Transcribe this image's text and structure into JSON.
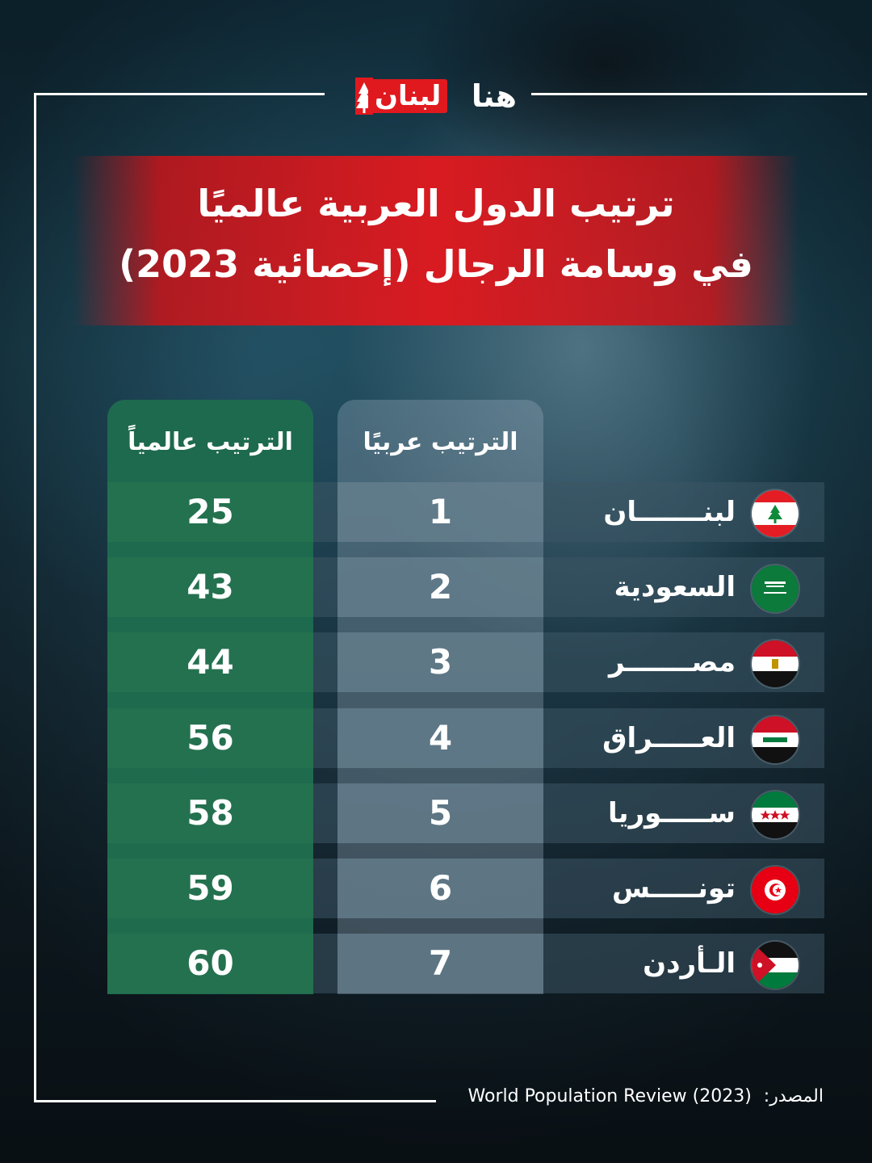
{
  "brand": {
    "logo_word_red": "لبنان",
    "logo_word_white": "هنا"
  },
  "title": {
    "line1": "ترتيب الدول العربية عالميًا",
    "line2": "في وسامة الرجال (إحصائية 2023)"
  },
  "table": {
    "header_arab": "الترتيب عربيًا",
    "header_world": "الترتيب عالمياً",
    "rows": [
      {
        "country": "لبنـــــــان",
        "flag": "lebanon-flag",
        "arab_rank": "1",
        "world_rank": "25"
      },
      {
        "country": "السعودية",
        "flag": "saudi-flag",
        "arab_rank": "2",
        "world_rank": "43"
      },
      {
        "country": "مصـــــــر",
        "flag": "egypt-flag",
        "arab_rank": "3",
        "world_rank": "44"
      },
      {
        "country": "العـــــراق",
        "flag": "iraq-flag",
        "arab_rank": "4",
        "world_rank": "56"
      },
      {
        "country": "ســـــوريا",
        "flag": "syria-flag",
        "arab_rank": "5",
        "world_rank": "58"
      },
      {
        "country": "تونـــــس",
        "flag": "tunisia-flag",
        "arab_rank": "6",
        "world_rank": "59"
      },
      {
        "country": "الـأردن",
        "flag": "jordan-flag",
        "arab_rank": "7",
        "world_rank": "60"
      }
    ]
  },
  "source": {
    "label": "المصدر:",
    "value": "World Population Review (2023)"
  },
  "colors": {
    "accent_red": "#d81b21",
    "world_green": "#24714f"
  }
}
